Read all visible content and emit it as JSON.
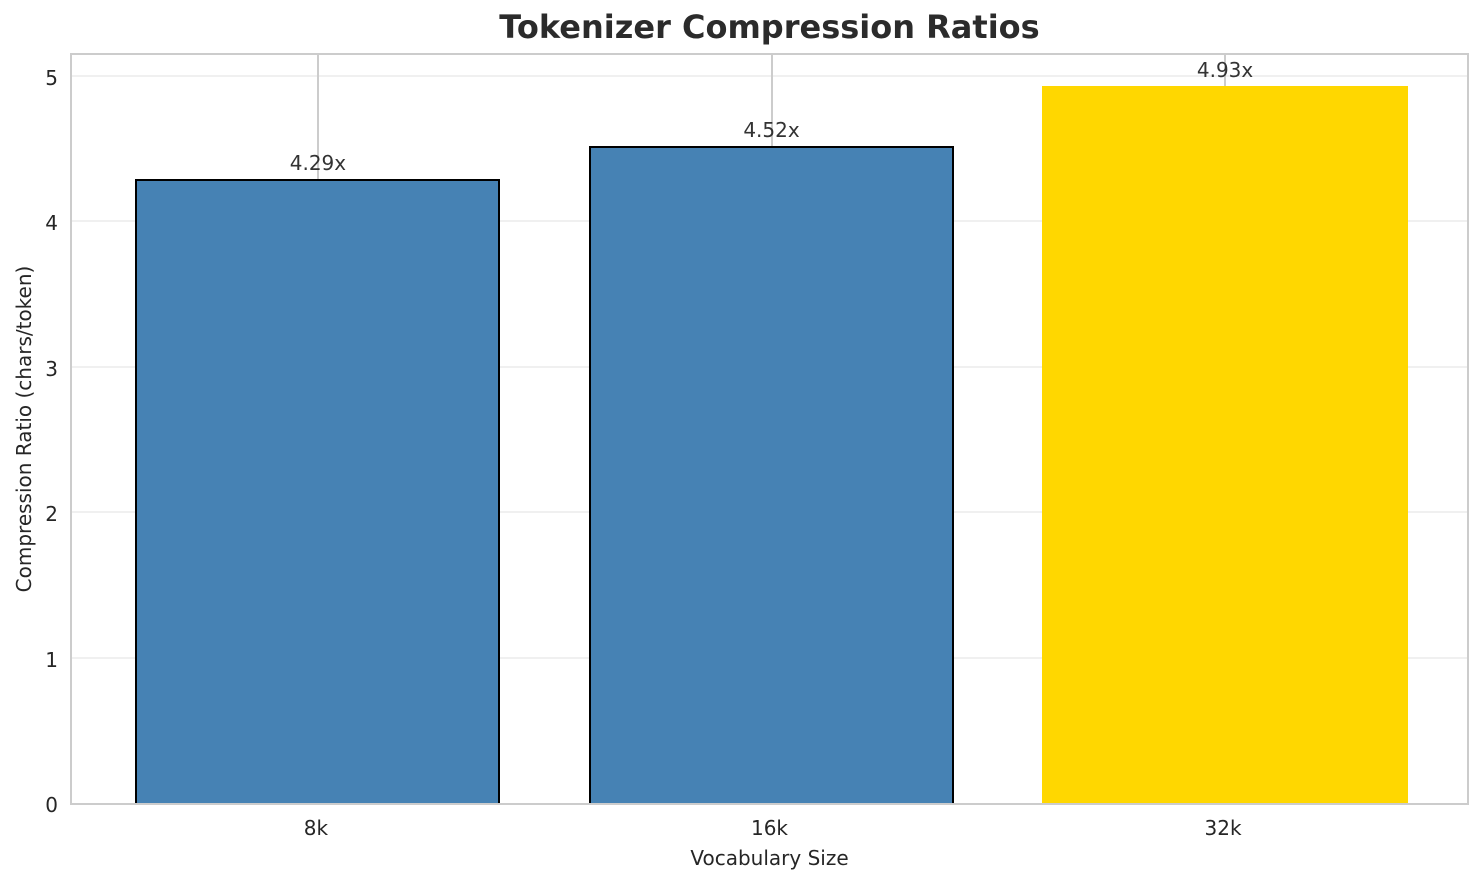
{
  "chart_data": {
    "type": "bar",
    "title": "Tokenizer Compression Ratios",
    "xlabel": "Vocabulary Size",
    "ylabel": "Compression Ratio (chars/token)",
    "categories": [
      "8k",
      "16k",
      "32k"
    ],
    "values": [
      4.29,
      4.52,
      4.93
    ],
    "bar_labels": [
      "4.29x",
      "4.52x",
      "4.93x"
    ],
    "bar_colors": [
      "#4682B4",
      "#4682B4",
      "#FFD700"
    ],
    "bar_has_edge": [
      true,
      true,
      false
    ],
    "bar_edge_color": "#000000",
    "yticks": [
      0,
      1,
      2,
      3,
      4,
      5
    ],
    "ylim": [
      0,
      5.17
    ],
    "grid": true,
    "legend_position": "none",
    "colors": {
      "background": "#ffffff",
      "spine": "#cccccc",
      "grid_horizontal": "#f0f0f0",
      "grid_vertical": "#cccccc",
      "text": "#262626",
      "title_text": "#2b2b2b"
    }
  }
}
